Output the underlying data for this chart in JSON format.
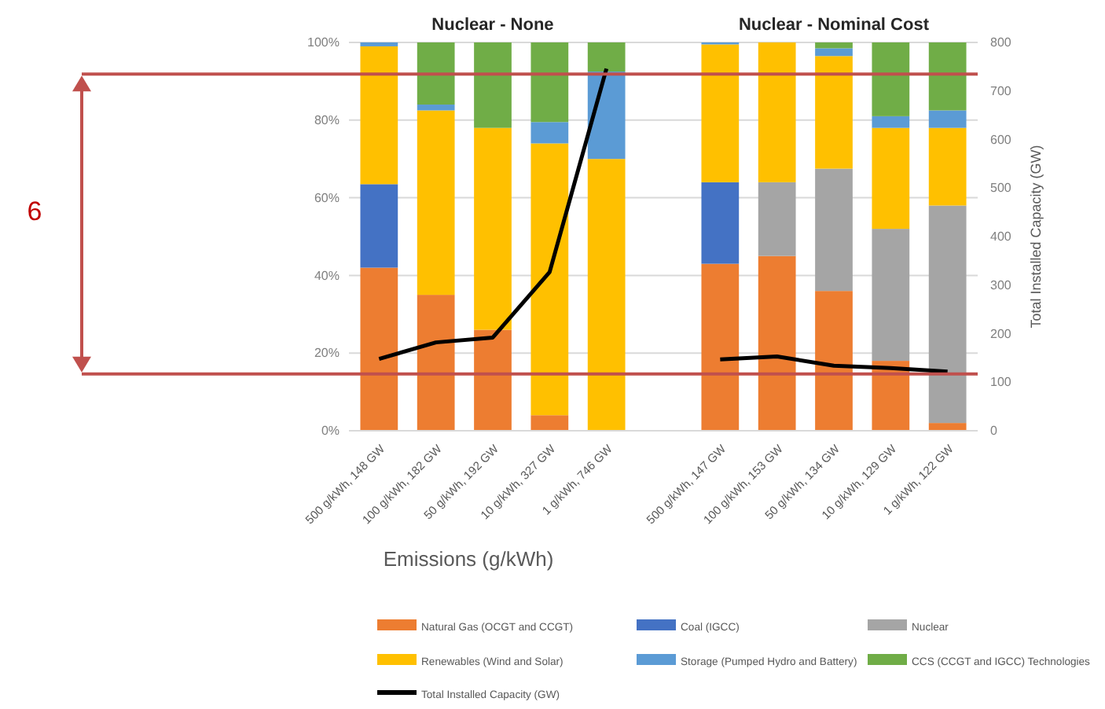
{
  "chart_data": {
    "type": "bar",
    "stacked": true,
    "categories": [
      "500 g/kWh, 148 GW",
      "100 g/kWh, 182 GW",
      "50 g/kWh, 192 GW",
      "10 g/kWh, 327 GW",
      "1 g/kWh, 746 GW",
      null,
      "500 g/kWh, 147 GW",
      "100 g/kWh, 153 GW",
      "50 g/kWh, 134 GW",
      "10 g/kWh, 129 GW",
      "1 g/kWh, 122 GW"
    ],
    "xlabel": "Emissions (g/kWh)",
    "y2label": "Total Installed Capacity (GW)",
    "annotations": [
      "Nuclear - None",
      "Nuclear - Nominal Cost",
      "6"
    ],
    "ylim": [
      0,
      100
    ],
    "yticks": [
      {
        "value": 0,
        "label": "0%"
      },
      {
        "value": 20,
        "label": "20%"
      },
      {
        "value": 40,
        "label": "40%"
      },
      {
        "value": 60,
        "label": "60%"
      },
      {
        "value": 80,
        "label": "80%"
      },
      {
        "value": 100,
        "label": "100%"
      }
    ],
    "y2lim": [
      0,
      800
    ],
    "y2ticks": [
      0,
      100,
      200,
      300,
      400,
      500,
      600,
      700,
      800
    ],
    "grid": "y",
    "legend": "bottom",
    "ref_lines": [
      {
        "axis": "y2",
        "value": 735,
        "color": "#c0504d"
      },
      {
        "axis": "y2",
        "value": 117,
        "color": "#c0504d"
      }
    ],
    "series": [
      {
        "name": "Natural Gas (OCGT and CCGT)",
        "color": "#ed7d31",
        "values": [
          42,
          35,
          26,
          4,
          0,
          null,
          43,
          45,
          36,
          18,
          2
        ]
      },
      {
        "name": "Coal (IGCC)",
        "color": "#4472c4",
        "values": [
          21.5,
          0,
          0,
          0,
          0,
          null,
          21,
          0,
          0,
          0,
          0
        ]
      },
      {
        "name": "Nuclear",
        "color": "#a5a5a5",
        "values": [
          0,
          0,
          0,
          0,
          0,
          null,
          0,
          19,
          31.5,
          34,
          56
        ]
      },
      {
        "name": "Renewables (Wind and Solar)",
        "color": "#ffc000",
        "values": [
          35.5,
          47.5,
          52,
          70,
          70,
          null,
          35.5,
          36,
          29,
          26,
          20
        ]
      },
      {
        "name": "Storage (Pumped Hydro and Battery)",
        "color": "#5b9bd5",
        "values": [
          1,
          1.5,
          0,
          5.5,
          22.5,
          null,
          0.5,
          0,
          2,
          3,
          4.5
        ]
      },
      {
        "name": "CCS (CCGT and IGCC) Technologies",
        "color": "#70ad47",
        "values": [
          0,
          16,
          22,
          20.5,
          7.5,
          null,
          0,
          0,
          1.5,
          19,
          17.5
        ]
      },
      {
        "name": "Total Installed Capacity (GW)",
        "type": "line",
        "axis": "y2",
        "color": "#000000",
        "values": [
          148,
          182,
          192,
          327,
          746,
          null,
          147,
          153,
          134,
          129,
          122
        ]
      }
    ]
  }
}
